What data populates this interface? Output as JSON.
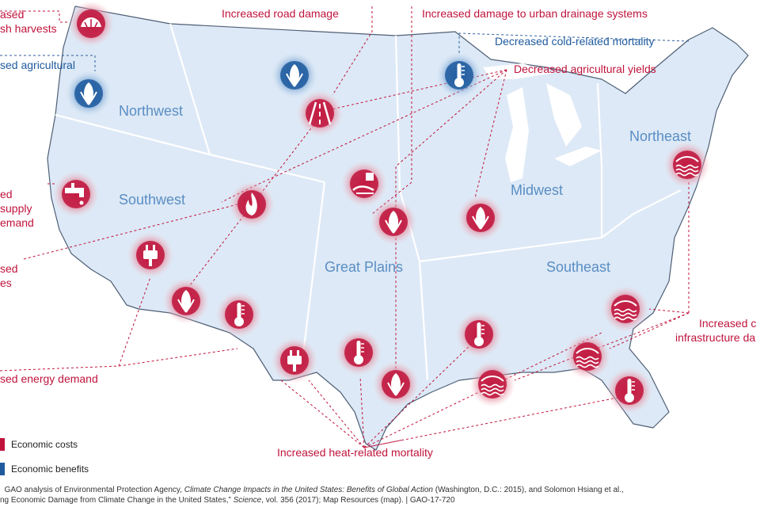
{
  "colors": {
    "land": "#dde9f6",
    "border": "#ffffff",
    "outline": "#4f5f75",
    "cost": "#c0143c",
    "benefit": "#1f5a9e",
    "leader": "#c0143c",
    "leader_benefit": "#2c5f9e"
  },
  "regions": {
    "northwest": "Northwest",
    "southwest": "Southwest",
    "great_plains": "Great Plains",
    "midwest": "Midwest",
    "northeast": "Northeast",
    "southeast": "Southeast"
  },
  "labels": {
    "shellfish_1": "ased",
    "shellfish_2": "sh harvests",
    "ag_benefit": "sed agricultural",
    "road": "Increased road damage",
    "drainage": "Increased damage to urban drainage systems",
    "cold": "Decreased cold-related mortality",
    "ag_yields": "Decreased agricultural yields",
    "water_1": "ed",
    "water_2": "supply",
    "water_3": "emand",
    "wildfire_1": "sed",
    "wildfire_2": "es",
    "energy": "sed energy demand",
    "heat": "Increased heat-related mortality",
    "coastal_1": "Increased c",
    "coastal_2": "infrastructure da"
  },
  "legend": {
    "costs": "Economic costs",
    "benefits": "Economic benefits"
  },
  "icons": [
    {
      "name": "shellfish-icon",
      "impact": "cost"
    },
    {
      "name": "corn-benefit-icon",
      "impact": "benefit"
    },
    {
      "name": "corn-benefit-icon",
      "impact": "benefit"
    },
    {
      "name": "road-icon",
      "impact": "cost"
    },
    {
      "name": "thermometer-benefit-icon",
      "impact": "benefit"
    },
    {
      "name": "faucet-icon",
      "impact": "cost"
    },
    {
      "name": "wildfire-icon",
      "impact": "cost"
    },
    {
      "name": "corn-icon",
      "impact": "cost"
    },
    {
      "name": "drain-icon",
      "impact": "cost"
    },
    {
      "name": "corn-icon",
      "impact": "cost"
    },
    {
      "name": "coastal-flooding-icon",
      "impact": "cost"
    },
    {
      "name": "plug-icon",
      "impact": "cost"
    },
    {
      "name": "corn-icon",
      "impact": "cost"
    },
    {
      "name": "thermometer-icon",
      "impact": "cost"
    },
    {
      "name": "plug-icon",
      "impact": "cost"
    },
    {
      "name": "thermometer-icon",
      "impact": "cost"
    },
    {
      "name": "corn-icon",
      "impact": "cost"
    },
    {
      "name": "thermometer-icon",
      "impact": "cost"
    },
    {
      "name": "coastal-flooding-icon",
      "impact": "cost"
    },
    {
      "name": "coastal-flooding-icon",
      "impact": "cost"
    },
    {
      "name": "coastal-flooding-icon",
      "impact": "cost"
    },
    {
      "name": "thermometer-icon",
      "impact": "cost"
    }
  ],
  "source": {
    "line1_a": "GAO analysis of Environmental Protection Agency, ",
    "line1_b": "Climate Change Impacts in the United States: Benefits of Global Action",
    "line1_c": " (Washington, D.C.: 2015), and Solomon Hsiang et al.,",
    "line2_a": "ng Economic Damage from Climate Change in the United States,” ",
    "line2_b": "Science",
    "line2_c": ", vol. 356 (2017); Map Resources (map).   |  GAO-17-720"
  }
}
